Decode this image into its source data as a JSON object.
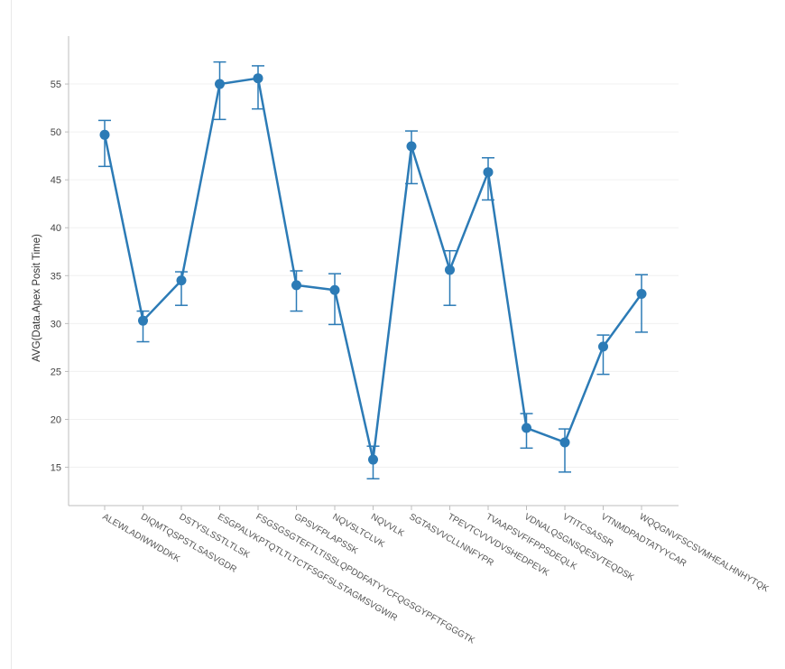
{
  "chart_data": {
    "type": "line",
    "ylabel": "AVG(Data.Apex Posit Time)",
    "xlabel": "",
    "ylim": [
      11,
      60
    ],
    "yticks": [
      15,
      20,
      25,
      30,
      35,
      40,
      45,
      50,
      55
    ],
    "grid": true,
    "series_color": "#2c7bb6",
    "categories": [
      "ALEWLADIWWDDKK",
      "DIQMTQSPSTLSASVGDR",
      "DSTYSLSSTLTLSK",
      "ESGPALVKPTQTLTLTCTFSGFSLSTAGMSVGWIR",
      "FSGSGSGTEFTLTISSLQPDDFATYYCFQGSGYPFTFGGGTK",
      "GPSVFPLAPSSK",
      "NQVSLTCLVK",
      "NQVVLK",
      "SGTASVVCLLNNFYPR",
      "TPEVTCVVVDVSHEDPEVK",
      "TVAAPSVFIFPPSDEQLK",
      "VDNALQSGNSQESVTEQDSK",
      "VTITCSASSR",
      "VTNMDPADTATYYCAR",
      "WQQGNVFSCSVMHEALHNHYTQK"
    ],
    "series": [
      {
        "values": [
          49.7,
          30.3,
          34.5,
          55.0,
          55.6,
          34.0,
          33.5,
          15.8,
          48.5,
          35.6,
          45.8,
          19.1,
          17.6,
          27.6,
          33.1
        ],
        "error_upper": [
          51.2,
          31.3,
          35.4,
          57.3,
          56.9,
          35.5,
          35.2,
          17.2,
          50.1,
          37.6,
          47.3,
          20.6,
          19.0,
          28.8,
          35.1
        ],
        "error_lower": [
          46.4,
          28.1,
          31.9,
          51.3,
          52.4,
          31.3,
          29.9,
          13.8,
          44.6,
          31.9,
          42.9,
          17.0,
          14.5,
          24.7,
          29.1
        ]
      }
    ]
  }
}
